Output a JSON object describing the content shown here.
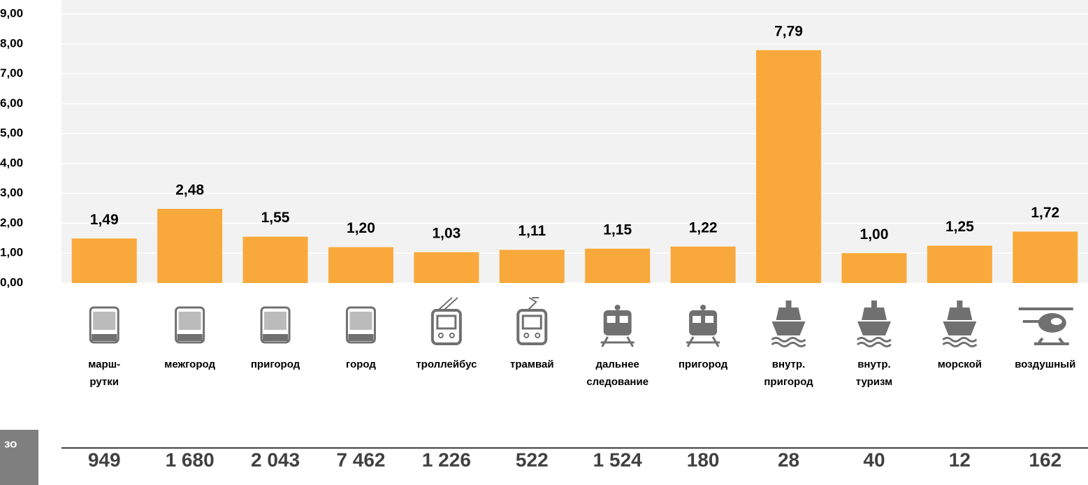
{
  "chart_data": {
    "type": "bar",
    "categories": [
      [
        "марш-",
        "рутки"
      ],
      [
        "межгород"
      ],
      [
        "пригород"
      ],
      [
        "город"
      ],
      [
        "троллейбус"
      ],
      [
        "трамвай"
      ],
      [
        "дальнее",
        "следование"
      ],
      [
        "пригород"
      ],
      [
        "внутр.",
        "пригород"
      ],
      [
        "внутр.",
        "туризм"
      ],
      [
        "морской"
      ],
      [
        "воздушный"
      ]
    ],
    "values": [
      1.49,
      2.48,
      1.55,
      1.2,
      1.03,
      1.11,
      1.15,
      1.22,
      7.79,
      1.0,
      1.25,
      1.72
    ],
    "value_labels": [
      "1,49",
      "2,48",
      "1,55",
      "1,20",
      "1,03",
      "1,11",
      "1,15",
      "1,22",
      "7,79",
      "1,00",
      "1,25",
      "1,72"
    ],
    "color": "#f9a93b",
    "ylim": [
      0,
      9
    ],
    "yticks": [
      {
        "value": 0,
        "label": "0,00"
      },
      {
        "value": 1,
        "label": "1,00"
      },
      {
        "value": 2,
        "label": "2,00"
      },
      {
        "value": 3,
        "label": "3,00"
      },
      {
        "value": 4,
        "label": "4,00"
      },
      {
        "value": 5,
        "label": "5,00"
      },
      {
        "value": 6,
        "label": "6,00"
      },
      {
        "value": 7,
        "label": "7,00"
      },
      {
        "value": 8,
        "label": "8,00"
      },
      {
        "value": 9,
        "label": "9,00"
      }
    ],
    "grid": true,
    "row_label": "зо",
    "row_values": [
      "949",
      "1 680",
      "2 043",
      "7 462",
      "1 226",
      "522",
      "1 524",
      "180",
      "28",
      "40",
      "12",
      "162"
    ]
  }
}
